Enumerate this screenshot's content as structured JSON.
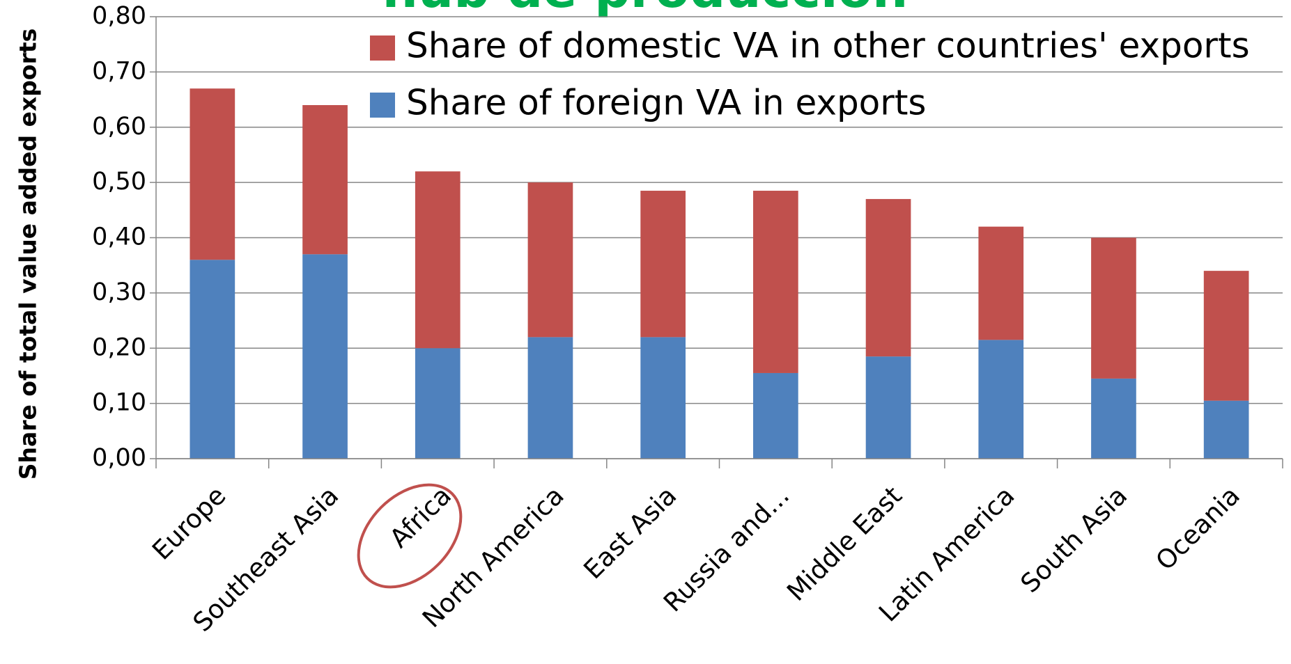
{
  "chart_data": {
    "type": "stacked_bar",
    "title": "hub de producción",
    "y_label": "Share of total value added exports",
    "categories": [
      "Europe",
      "Southeast Asia",
      "Africa",
      "North America",
      "East Asia",
      "Russia and...",
      "Middle East",
      "Latin America",
      "South Asia",
      "Oceania"
    ],
    "series": [
      {
        "name": "Share of foreign VA in exports",
        "color": "#4f81bd",
        "values": [
          0.36,
          0.37,
          0.2,
          0.22,
          0.22,
          0.155,
          0.185,
          0.215,
          0.145,
          0.105
        ]
      },
      {
        "name": "Share of domestic VA in other countries' exports",
        "color": "#c0504d",
        "values": [
          0.31,
          0.27,
          0.32,
          0.28,
          0.265,
          0.33,
          0.285,
          0.205,
          0.255,
          0.235
        ]
      }
    ],
    "ylim": [
      0,
      0.8
    ],
    "yticks": [
      {
        "value": 0,
        "label": "0,00"
      },
      {
        "value": 0.1,
        "label": "0,10"
      },
      {
        "value": 0.2,
        "label": "0,20"
      },
      {
        "value": 0.3,
        "label": "0,30"
      },
      {
        "value": 0.4,
        "label": "0,40"
      },
      {
        "value": 0.5,
        "label": "0,50"
      },
      {
        "value": 0.6,
        "label": "0,60"
      },
      {
        "value": 0.7,
        "label": "0,70"
      },
      {
        "value": 0.8,
        "label": "0,80"
      }
    ],
    "grid": true
  }
}
